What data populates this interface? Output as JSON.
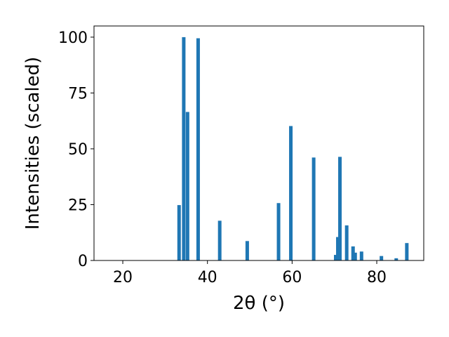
{
  "chart_data": {
    "type": "bar",
    "xlabel": "2θ (°)",
    "ylabel": "Intensities (scaled)",
    "x": [
      33.3,
      34.4,
      35.3,
      37.8,
      42.9,
      49.4,
      56.8,
      59.7,
      65.1,
      70.3,
      70.8,
      71.3,
      72.9,
      74.4,
      74.9,
      76.4,
      81.1,
      84.6,
      87.1
    ],
    "values": [
      24.8,
      100,
      66.5,
      99.5,
      17.8,
      8.7,
      25.7,
      60.2,
      46.1,
      2.5,
      10.5,
      46.4,
      15.7,
      6.3,
      3.5,
      4,
      2,
      1,
      7.8
    ],
    "color": "#1f77b4",
    "xlim": [
      13.2,
      91.1
    ],
    "xticks": [
      20,
      40,
      60,
      80
    ],
    "ylim": [
      0,
      105
    ],
    "yticks": [
      0,
      25,
      50,
      75,
      100
    ]
  }
}
